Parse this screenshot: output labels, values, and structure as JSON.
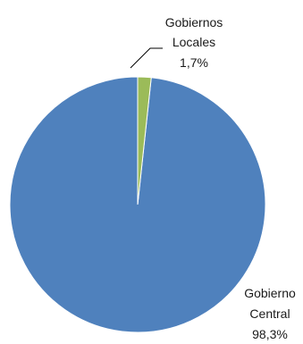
{
  "chart_data": {
    "type": "pie",
    "title": "",
    "slices": [
      {
        "label_lines": [
          "Gobierno",
          "Central"
        ],
        "percent_label": "98,3%",
        "value": 98.3,
        "color": "#4f81bd"
      },
      {
        "label_lines": [
          "Gobiernos",
          "Locales"
        ],
        "percent_label": "1,7%",
        "value": 1.7,
        "color": "#9bbb59"
      }
    ],
    "legend": "none",
    "start_angle_deg": 0,
    "direction": "counterclockwise"
  }
}
